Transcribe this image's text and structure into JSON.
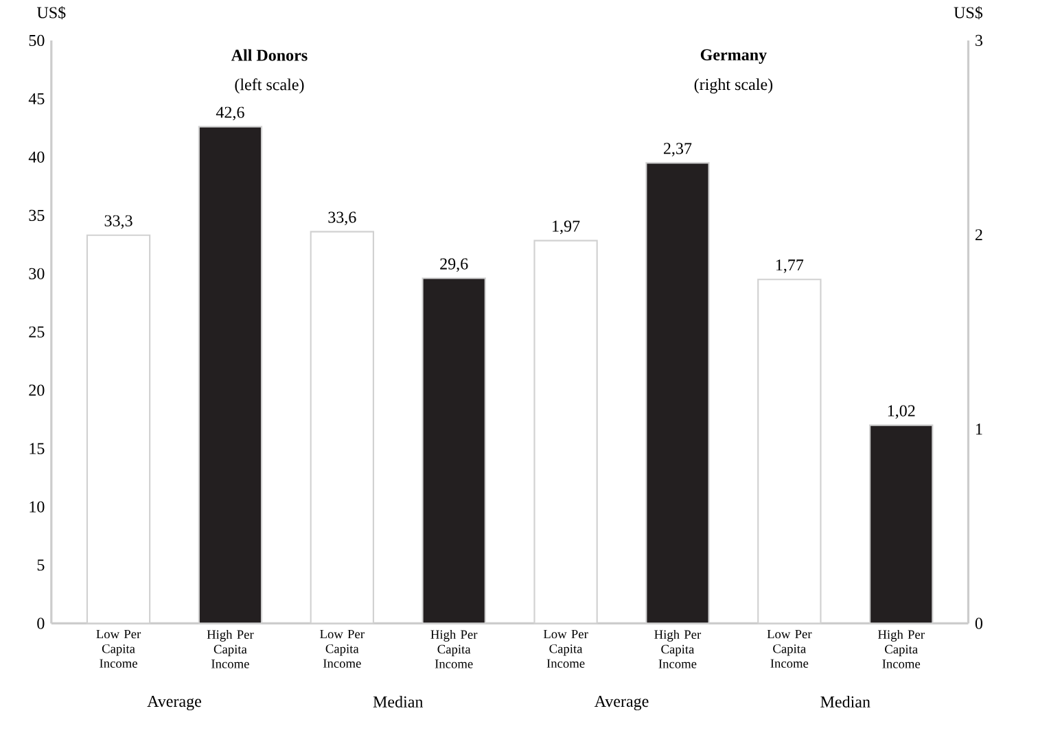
{
  "chart_data": {
    "type": "bar",
    "ylabel": "US$",
    "y2label": "US$",
    "categories": [
      "Low Per Capita Income",
      "High Per Capita Income",
      "Low Per Capita Income",
      "High Per Capita Income",
      "Low Per Capita Income",
      "High Per Capita Income",
      "Low Per Capita Income",
      "High Per Capita Income"
    ],
    "series": [
      {
        "colors": [
          "#ffffff",
          "#231f20",
          "#ffffff",
          "#231f20",
          "#ffffff",
          "#231f20",
          "#ffffff",
          "#231f20"
        ],
        "values": [
          33.3,
          42.6,
          33.6,
          29.6,
          null,
          null,
          null,
          null
        ],
        "value_labels": [
          "33,3",
          "42,6",
          "33,6",
          "29,6",
          null,
          null,
          null,
          null
        ]
      },
      {
        "axis": "y2",
        "colors": [
          "#ffffff",
          "#231f20",
          "#ffffff",
          "#231f20",
          "#ffffff",
          "#231f20",
          "#ffffff",
          "#231f20"
        ],
        "values": [
          null,
          null,
          null,
          null,
          1.97,
          2.37,
          1.77,
          1.02
        ],
        "value_labels": [
          null,
          null,
          null,
          null,
          "1,97",
          "2,37",
          "1,77",
          "1,02"
        ]
      }
    ],
    "ylim": [
      0,
      50
    ],
    "yticks": [
      0,
      5,
      10,
      15,
      20,
      25,
      30,
      35,
      40,
      45,
      50
    ],
    "y2lim": [
      0,
      3
    ],
    "y2ticks": [
      0,
      1,
      2,
      3
    ],
    "annotations": [
      "Average",
      "Median",
      "Average",
      "Median",
      "**All Donors**",
      "(left scale)",
      "**Germany**",
      "(right scale)"
    ]
  }
}
